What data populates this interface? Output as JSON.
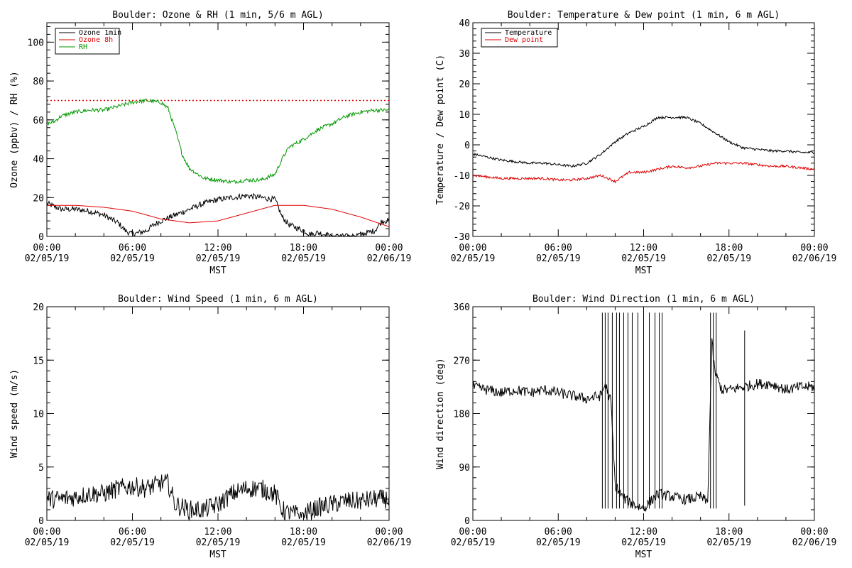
{
  "colors": {
    "axis": "#000000",
    "black": "#000000",
    "red": "#e00000",
    "green": "#009900"
  },
  "chart_data": [
    {
      "type": "line",
      "title": "Boulder: Ozone & RH (1 min, 5/6 m AGL)",
      "xlabel": "MST",
      "ylabel": "Ozone (ppbv) / RH (%)",
      "x_tick_labels": [
        [
          "00:00",
          "02/05/19"
        ],
        [
          "06:00",
          "02/05/19"
        ],
        [
          "12:00",
          "02/05/19"
        ],
        [
          "18:00",
          "02/05/19"
        ],
        [
          "00:00",
          "02/06/19"
        ]
      ],
      "xlim_hours": [
        0,
        24
      ],
      "ylim": [
        0,
        110
      ],
      "y_ticks": [
        0,
        20,
        40,
        60,
        80,
        100
      ],
      "legend": {
        "position": "top-left",
        "entries": [
          {
            "label": "Ozone 1min",
            "color": "#000000"
          },
          {
            "label": "Ozone 8h",
            "color": "#e00000"
          },
          {
            "label": "RH",
            "color": "#009900"
          }
        ]
      },
      "reference_lines": [
        {
          "y": 70,
          "color": "#e00000",
          "style": "dotted"
        }
      ],
      "series": [
        {
          "name": "Ozone 1min",
          "color": "#000000",
          "noise": 1.5,
          "x": [
            0,
            1,
            2,
            3,
            4,
            5,
            5.5,
            6,
            6.5,
            7,
            7.5,
            8,
            9,
            10,
            11,
            12,
            13,
            14,
            15,
            16,
            16.5,
            17,
            18,
            18.5,
            19,
            20,
            21,
            22,
            23,
            23.5,
            24
          ],
          "y": [
            17,
            14,
            14,
            13,
            11,
            7,
            3,
            1,
            2,
            3,
            6,
            8,
            11,
            14,
            17,
            19,
            20,
            21,
            20,
            19,
            10,
            6,
            3,
            1,
            2,
            0,
            0,
            1,
            3,
            8,
            8
          ]
        },
        {
          "name": "Ozone 8h",
          "color": "#e00000",
          "noise": 0,
          "x": [
            0,
            2,
            4,
            6,
            8,
            10,
            12,
            14,
            16,
            18,
            20,
            22,
            24
          ],
          "y": [
            16,
            16,
            15,
            13,
            9,
            7,
            8,
            12,
            16,
            16,
            14,
            10,
            5
          ]
        },
        {
          "name": "RH",
          "color": "#009900",
          "noise": 1,
          "x": [
            0,
            0.5,
            1,
            2,
            3,
            4,
            5,
            6,
            7,
            8,
            8.5,
            9,
            9.5,
            10,
            11,
            12,
            13,
            14,
            15,
            16,
            16.5,
            17,
            18,
            19,
            20,
            21,
            22,
            23,
            24
          ],
          "y": [
            58,
            59,
            62,
            64,
            65,
            65,
            67,
            69,
            70,
            69,
            66,
            55,
            42,
            35,
            30,
            29,
            28,
            29,
            29,
            32,
            40,
            46,
            50,
            55,
            58,
            62,
            64,
            65,
            65
          ]
        }
      ]
    },
    {
      "type": "line",
      "title": "Boulder: Temperature & Dew point (1 min, 6 m AGL)",
      "xlabel": "MST",
      "ylabel": "Temperature / Dew point (C)",
      "x_tick_labels": [
        [
          "00:00",
          "02/05/19"
        ],
        [
          "06:00",
          "02/05/19"
        ],
        [
          "12:00",
          "02/05/19"
        ],
        [
          "18:00",
          "02/05/19"
        ],
        [
          "00:00",
          "02/06/19"
        ]
      ],
      "xlim_hours": [
        0,
        24
      ],
      "ylim": [
        -30,
        40
      ],
      "y_ticks": [
        -30,
        -20,
        -10,
        0,
        10,
        20,
        30,
        40
      ],
      "legend": {
        "position": "top-left",
        "entries": [
          {
            "label": "Temperature",
            "color": "#000000"
          },
          {
            "label": "Dew point",
            "color": "#e00000"
          }
        ]
      },
      "series": [
        {
          "name": "Temperature",
          "color": "#000000",
          "noise": 0.4,
          "x": [
            0,
            1,
            2,
            3,
            4,
            5,
            6,
            7,
            8,
            9,
            10,
            11,
            12,
            13,
            14,
            15,
            16,
            17,
            18,
            19,
            20,
            21,
            22,
            23,
            24
          ],
          "y": [
            -3,
            -4,
            -5,
            -5.5,
            -6,
            -6,
            -6.5,
            -7,
            -6,
            -3,
            1,
            4,
            6,
            9,
            9,
            9,
            7,
            4,
            1,
            -1,
            -1.5,
            -2,
            -2,
            -2.5,
            -2.5
          ]
        },
        {
          "name": "Dew point",
          "color": "#e00000",
          "noise": 0.4,
          "x": [
            0,
            1,
            2,
            3,
            4,
            5,
            6,
            7,
            8,
            9,
            10,
            11,
            12,
            13,
            14,
            15,
            16,
            17,
            18,
            19,
            20,
            21,
            22,
            23,
            24
          ],
          "y": [
            -10,
            -10.5,
            -11,
            -11,
            -11,
            -11,
            -11.5,
            -11.5,
            -11,
            -10,
            -12,
            -9,
            -9,
            -8,
            -7,
            -7.5,
            -7,
            -6,
            -6,
            -6,
            -6.5,
            -7,
            -7,
            -7.5,
            -8
          ]
        }
      ]
    },
    {
      "type": "line",
      "title": "Boulder: Wind Speed (1 min, 6 m AGL)",
      "xlabel": "MST",
      "ylabel": "Wind speed (m/s)",
      "x_tick_labels": [
        [
          "00:00",
          "02/05/19"
        ],
        [
          "06:00",
          "02/05/19"
        ],
        [
          "12:00",
          "02/05/19"
        ],
        [
          "18:00",
          "02/05/19"
        ],
        [
          "00:00",
          "02/06/19"
        ]
      ],
      "xlim_hours": [
        0,
        24
      ],
      "ylim": [
        0,
        20
      ],
      "y_ticks": [
        0,
        5,
        10,
        15,
        20
      ],
      "series": [
        {
          "name": "Wind speed",
          "color": "#000000",
          "noise": 0.9,
          "x": [
            0,
            1,
            2,
            3,
            4,
            5,
            6,
            7,
            8,
            8.5,
            9,
            10,
            11,
            12,
            13,
            14,
            15,
            16,
            16.5,
            17,
            18,
            19,
            20,
            21,
            22,
            23,
            24
          ],
          "y": [
            2,
            2,
            2.2,
            2.5,
            2.5,
            3,
            3.2,
            3,
            3.5,
            3.5,
            1.5,
            1,
            1,
            1.5,
            2.5,
            3,
            3,
            2.5,
            1,
            0.6,
            0.6,
            1.2,
            1.5,
            1.8,
            1.8,
            2,
            2
          ]
        }
      ]
    },
    {
      "type": "line",
      "title": "Boulder: Wind Direction (1 min, 6 m AGL)",
      "xlabel": "MST",
      "ylabel": "Wind direction (deg)",
      "x_tick_labels": [
        [
          "00:00",
          "02/05/19"
        ],
        [
          "06:00",
          "02/05/19"
        ],
        [
          "12:00",
          "02/05/19"
        ],
        [
          "18:00",
          "02/05/19"
        ],
        [
          "00:00",
          "02/06/19"
        ]
      ],
      "xlim_hours": [
        0,
        24
      ],
      "ylim": [
        0,
        360
      ],
      "y_ticks": [
        0,
        90,
        180,
        270,
        360
      ],
      "series": [
        {
          "name": "Wind direction",
          "color": "#000000",
          "noise": 9,
          "x": [
            0,
            1,
            2,
            3,
            4,
            5,
            6,
            7,
            8,
            9,
            9.3,
            9.7,
            10,
            10.5,
            11,
            12,
            13,
            14,
            15,
            16,
            16.5,
            16.8,
            17,
            17.5,
            18,
            19,
            20,
            21,
            22,
            23,
            24
          ],
          "y": [
            225,
            220,
            215,
            220,
            215,
            220,
            215,
            210,
            205,
            210,
            230,
            200,
            60,
            40,
            30,
            20,
            45,
            40,
            35,
            40,
            30,
            300,
            250,
            220,
            220,
            225,
            230,
            230,
            220,
            225,
            225
          ]
        }
      ]
    }
  ]
}
